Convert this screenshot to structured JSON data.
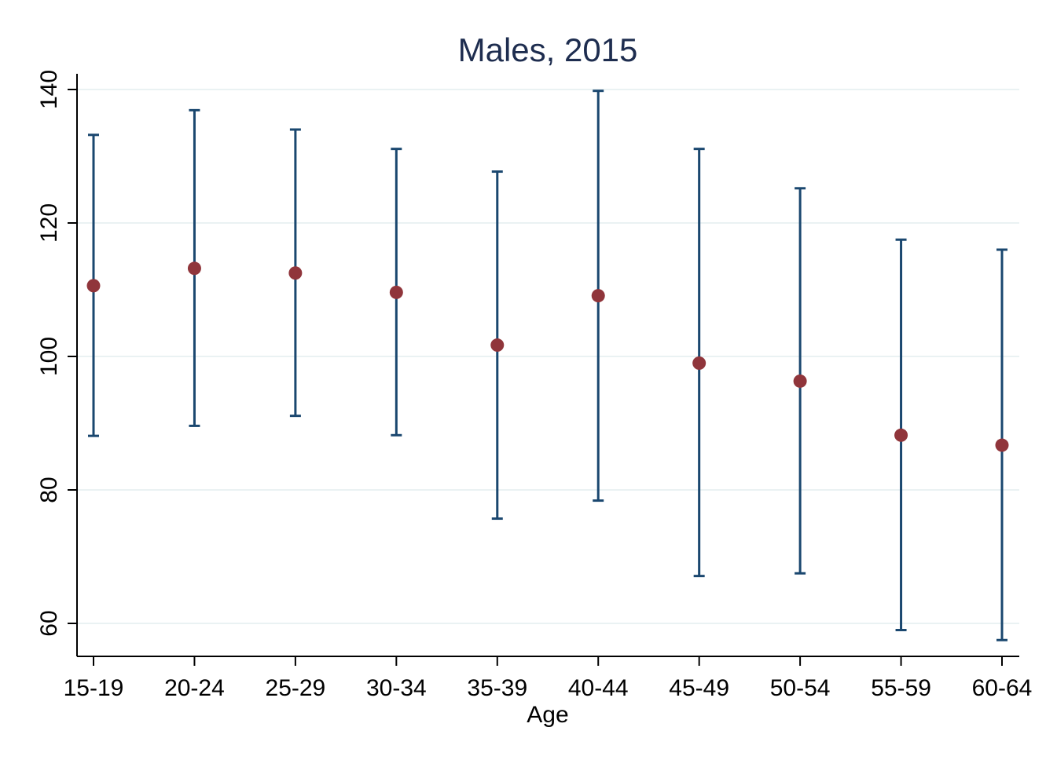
{
  "chart_data": {
    "type": "scatter",
    "title": "Males, 2015",
    "xlabel": "Age",
    "ylabel": "",
    "categories": [
      "15-19",
      "20-24",
      "25-29",
      "30-34",
      "35-39",
      "40-44",
      "45-49",
      "50-54",
      "55-59",
      "60-64"
    ],
    "series": [
      {
        "values": [
          110.6,
          113.2,
          112.5,
          109.6,
          101.7,
          109.1,
          99.0,
          96.3,
          88.2,
          86.7
        ],
        "lower": [
          88.1,
          89.6,
          91.1,
          88.2,
          75.7,
          78.4,
          67.1,
          67.5,
          59.0,
          57.5
        ],
        "upper": [
          133.2,
          136.9,
          134.0,
          131.1,
          127.7,
          139.8,
          131.1,
          125.2,
          117.5,
          116.0
        ]
      }
    ],
    "ylim": [
      55,
      142
    ],
    "yticks": [
      60,
      80,
      100,
      120,
      140
    ],
    "grid": true,
    "colors": {
      "marker": "#90353b",
      "errorbar": "#1a476f",
      "grid": "#eaf2f3",
      "title": "#1e2d4f",
      "axis": "#000000"
    }
  }
}
